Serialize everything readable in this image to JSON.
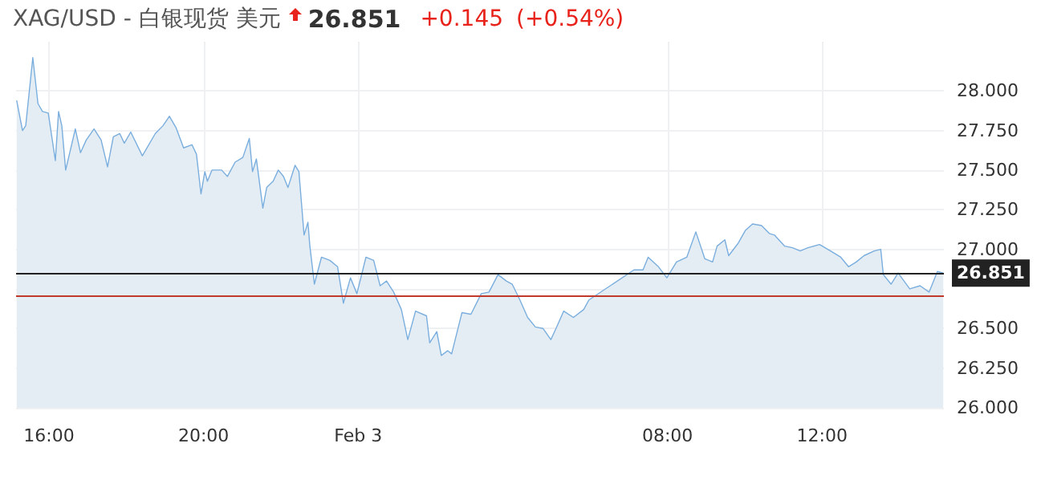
{
  "chart_data": {
    "type": "area",
    "title": "XAG/USD - 白银现货 美元",
    "annotations": [
      "26.851",
      "+0.145",
      "(+0.54%)"
    ],
    "x": [
      "--02-02T15:10",
      "--02-02T15:19",
      "--02-02T15:24",
      "--02-02T15:35",
      "--02-02T15:43",
      "--02-02T15:50",
      "--02-02T15:59",
      "--02-02T16:10",
      "--02-02T16:15",
      "--02-02T16:20",
      "--02-02T16:26",
      "--02-02T16:41",
      "--02-02T16:49",
      "--02-02T16:58",
      "--02-02T17:10",
      "--02-02T17:21",
      "--02-02T17:31",
      "--02-02T17:40",
      "--02-02T17:50",
      "--02-02T17:57",
      "--02-02T18:07",
      "--02-02T18:25",
      "--02-02T18:45",
      "--02-02T18:57",
      "--02-02T19:07",
      "--02-02T19:17",
      "--02-02T19:29",
      "--02-02T19:42",
      "--02-02T19:49",
      "--02-02T19:56",
      "--02-02T20:02",
      "--02-02T20:06",
      "--02-02T20:13",
      "--02-02T20:28",
      "--02-02T20:37",
      "--02-02T20:49",
      "--02-02T21:01",
      "--02-02T21:11",
      "--02-02T21:16",
      "--02-02T21:22",
      "--02-02T21:32",
      "--02-02T21:38",
      "--02-02T21:48",
      "--02-02T21:56",
      "--02-02T22:04",
      "--02-02T22:11",
      "--02-02T22:22",
      "--02-02T22:28",
      "--02-02T22:36",
      "--02-02T22:42",
      "--02-02T22:45",
      "--02-02T22:52",
      "--02-02T23:03",
      "--02-02T23:16",
      "--02-02T23:28",
      "--02-02T23:37",
      "--02-02T23:48",
      "--02-02T23:58",
      "--02-03T00:12",
      "--02-03T00:24",
      "--02-03T00:34",
      "--02-03T00:44",
      "--02-03T00:55",
      "--02-03T01:07",
      "--02-03T01:17",
      "--02-03T01:29",
      "--02-03T01:46",
      "--02-03T01:51",
      "--02-03T02:02",
      "--02-03T02:09",
      "--02-03T02:19",
      "--02-03T02:25",
      "--02-03T02:41",
      "--02-03T02:55",
      "--02-03T03:11",
      "--02-03T03:23",
      "--02-03T03:37",
      "--02-03T03:50",
      "--02-03T03:59",
      "--02-03T04:11",
      "--02-03T04:23",
      "--02-03T04:35",
      "--02-03T04:47",
      "--02-03T04:59",
      "--02-03T05:07",
      "--02-03T05:19",
      "--02-03T05:34",
      "--02-03T05:50",
      "--02-03T05:58",
      "--02-03T07:08",
      "--02-03T07:22",
      "--02-03T07:30",
      "--02-03T07:46",
      "--02-03T07:59",
      "--02-03T08:14",
      "--02-03T08:30",
      "--02-03T08:44",
      "--02-03T08:58",
      "--02-03T09:10",
      "--02-03T09:17",
      "--02-03T09:29",
      "--02-03T09:35",
      "--02-03T09:50",
      "--02-03T10:01",
      "--02-03T10:12",
      "--02-03T10:26",
      "--02-03T10:38",
      "--02-03T10:46",
      "--02-03T11:02",
      "--02-03T11:14",
      "--02-03T11:26",
      "--02-03T11:38",
      "--02-03T11:56",
      "--02-03T12:13",
      "--02-03T12:29",
      "--02-03T12:41",
      "--02-03T12:53",
      "--02-03T13:05",
      "--02-03T13:21",
      "--02-03T13:31",
      "--02-03T13:35",
      "--02-03T13:47",
      "--02-03T13:58",
      "--02-03T14:16",
      "--02-03T14:32",
      "--02-03T14:46",
      "--02-03T14:59",
      "--02-03T15:08"
    ],
    "series": [
      {
        "color": "#7aaede",
        "values": [
          27.94,
          27.75,
          27.78,
          28.21,
          27.92,
          27.87,
          27.86,
          27.56,
          27.87,
          27.78,
          27.5,
          27.76,
          27.61,
          27.69,
          27.76,
          27.69,
          27.52,
          27.71,
          27.73,
          27.67,
          27.74,
          27.59,
          27.73,
          27.78,
          27.84,
          27.77,
          27.64,
          27.66,
          27.6,
          27.35,
          27.49,
          27.43,
          27.5,
          27.5,
          27.46,
          27.55,
          27.58,
          27.7,
          27.49,
          27.57,
          27.26,
          27.39,
          27.43,
          27.5,
          27.46,
          27.39,
          27.53,
          27.49,
          27.09,
          27.17,
          27.02,
          26.78,
          26.95,
          26.93,
          26.89,
          26.66,
          26.82,
          26.72,
          26.95,
          26.93,
          26.77,
          26.8,
          26.73,
          26.62,
          26.43,
          26.61,
          26.58,
          26.41,
          26.48,
          26.33,
          26.36,
          26.34,
          26.6,
          26.59,
          26.72,
          26.73,
          26.84,
          26.8,
          26.78,
          26.68,
          26.57,
          26.51,
          26.5,
          26.43,
          26.5,
          26.61,
          26.57,
          26.62,
          26.68,
          26.87,
          26.87,
          26.95,
          26.89,
          26.82,
          26.92,
          26.95,
          27.11,
          26.94,
          26.92,
          27.02,
          27.06,
          26.96,
          27.04,
          27.12,
          27.16,
          27.15,
          27.1,
          27.09,
          27.02,
          27.01,
          26.99,
          27.01,
          27.03,
          26.99,
          26.95,
          26.89,
          26.92,
          26.96,
          26.99,
          27.0,
          26.84,
          26.78,
          26.85,
          26.75,
          26.77,
          26.73,
          26.86,
          26.85
        ]
      }
    ],
    "xlim": [
      "--02-02T15:09",
      "--02-03T15:09"
    ],
    "xticks": [
      {
        "value": "--02-02T16:00",
        "label": "16:00"
      },
      {
        "value": "--02-02T20:00",
        "label": "20:00"
      },
      {
        "value": "--02-03T00:00",
        "label": "Feb 3"
      },
      {
        "value": "--02-03T08:00",
        "label": "08:00"
      },
      {
        "value": "--02-03T12:00",
        "label": "12:00"
      }
    ],
    "ylim": [
      26,
      28.31
    ],
    "yticks": [
      {
        "value": 26,
        "label": "26.000"
      },
      {
        "value": 26.25,
        "label": "26.250"
      },
      {
        "value": 26.5,
        "label": "26.500"
      },
      {
        "value": 26.75,
        "label": null
      },
      {
        "value": 27,
        "label": "27.000"
      },
      {
        "value": 27.25,
        "label": "27.250"
      },
      {
        "value": 27.5,
        "label": "27.500"
      },
      {
        "value": 27.75,
        "label": "27.750"
      },
      {
        "value": 28,
        "label": "28.000"
      }
    ],
    "ref_lines": [
      {
        "axis": "y",
        "value": 26.851,
        "label": "26.851",
        "color": "#222222"
      },
      {
        "axis": "y",
        "value": 26.706,
        "color": "#c0392b"
      }
    ],
    "grid": true,
    "marker": "none"
  }
}
